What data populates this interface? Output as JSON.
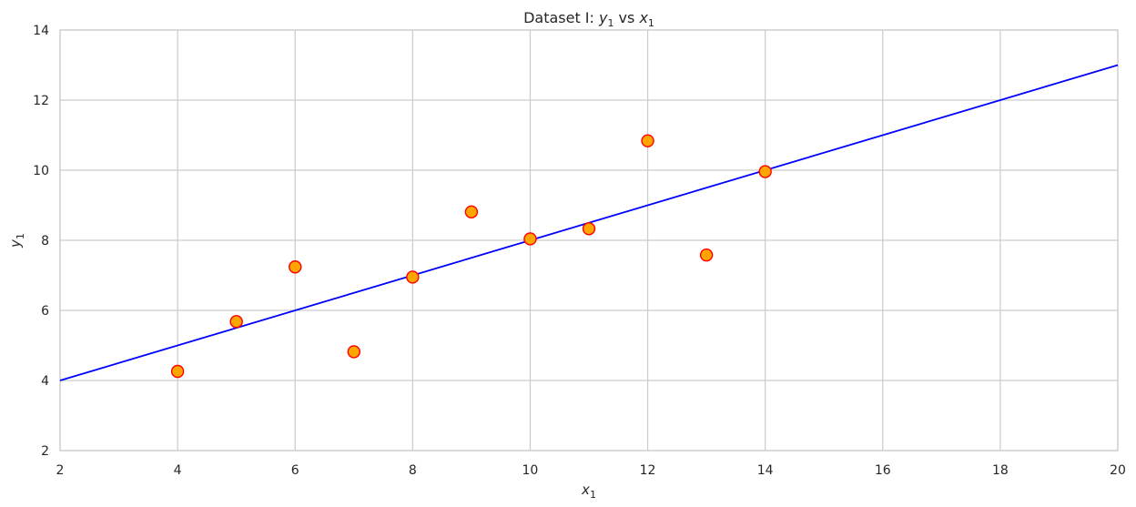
{
  "chart_data": {
    "type": "scatter",
    "title": {
      "prefix": "Dataset I: ",
      "y_var": "y",
      "y_sub": "1",
      "mid": " vs ",
      "x_var": "x",
      "x_sub": "1"
    },
    "xlabel": {
      "var": "x",
      "sub": "1"
    },
    "ylabel": {
      "var": "y",
      "sub": "1"
    },
    "xlim": [
      2,
      20
    ],
    "ylim": [
      2,
      14
    ],
    "xticks": [
      2,
      4,
      6,
      8,
      10,
      12,
      14,
      16,
      18,
      20
    ],
    "yticks": [
      2,
      4,
      6,
      8,
      10,
      12,
      14
    ],
    "grid": true,
    "points": [
      {
        "x": 4,
        "y": 4.26
      },
      {
        "x": 5,
        "y": 5.68
      },
      {
        "x": 6,
        "y": 7.24
      },
      {
        "x": 7,
        "y": 4.82
      },
      {
        "x": 8,
        "y": 6.95
      },
      {
        "x": 9,
        "y": 8.81
      },
      {
        "x": 10,
        "y": 8.04
      },
      {
        "x": 11,
        "y": 8.33
      },
      {
        "x": 12,
        "y": 10.84
      },
      {
        "x": 13,
        "y": 7.58
      },
      {
        "x": 14,
        "y": 9.96
      }
    ],
    "fit_line": {
      "x": [
        2,
        20
      ],
      "y": [
        4.0,
        13.0
      ]
    },
    "colors": {
      "marker_fill": "#ffa500",
      "marker_edge": "#ff0000",
      "line": "#0000ff",
      "grid": "#cccccc",
      "spine": "#cccccc"
    }
  }
}
